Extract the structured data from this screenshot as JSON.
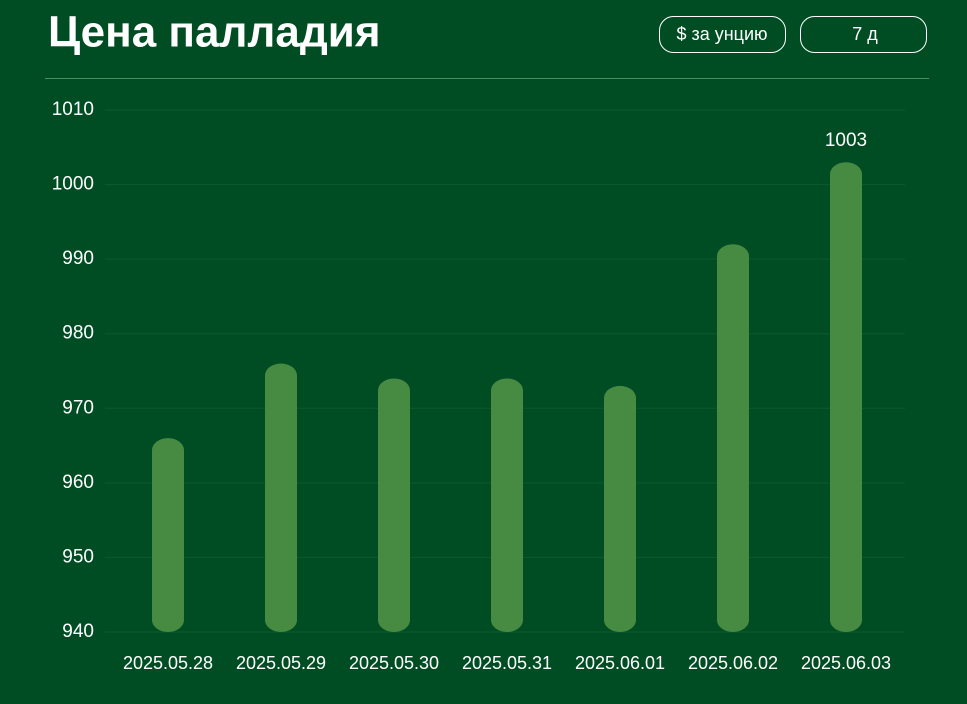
{
  "controls": [
    "$ за унцию",
    "7 д"
  ],
  "chart_data": {
    "type": "bar",
    "title": "Цена палладия",
    "categories": [
      "2025.05.28",
      "2025.05.29",
      "2025.05.30",
      "2025.05.31",
      "2025.06.01",
      "2025.06.02",
      "2025.06.03"
    ],
    "values": [
      966,
      976,
      974,
      974,
      973,
      992,
      1003
    ],
    "color": "#478a42",
    "ylim": [
      940,
      1010
    ],
    "yticks": [
      940,
      950,
      960,
      970,
      980,
      990,
      1000,
      1010
    ],
    "grid": true
  }
}
